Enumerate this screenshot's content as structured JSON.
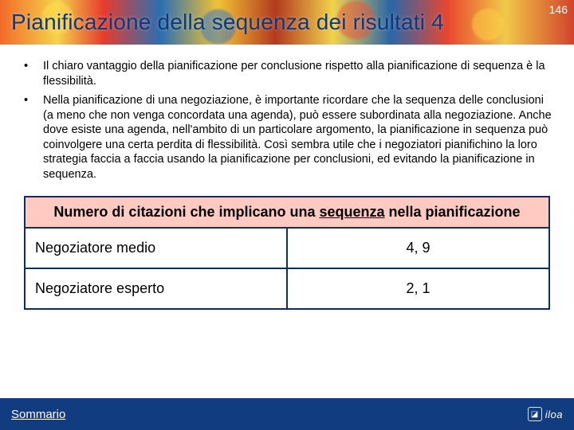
{
  "page_number": "146",
  "title": "Pianificazione della sequenza dei risultati 4",
  "bullets": [
    "Il chiaro vantaggio della pianificazione per conclusione rispetto alla pianificazione di sequenza è la flessibilità.",
    "Nella pianificazione di una negoziazione, è importante ricordare che la sequenza delle conclusioni (a meno che non venga concordata una agenda), può essere subordinata alla negoziazione. Anche dove esiste una agenda, nell'ambito di un particolare argomento, la pianificazione in sequenza può coinvolgere una certa perdita di flessibilità. Così sembra utile che i negoziatori pianifichino la loro strategia faccia a faccia usando la pianificazione per conclusioni, ed evitando la pianificazione in sequenza."
  ],
  "table": {
    "header_pre": "Numero di citazioni che implicano una ",
    "header_underlined": "sequenza",
    "header_post": " nella pianificazione",
    "rows": [
      {
        "label": "Negoziatore medio",
        "value": "4, 9"
      },
      {
        "label": "Negoziatore esperto",
        "value": "2, 1"
      }
    ]
  },
  "footer": {
    "link_label": "Sommario",
    "logo_text": "iloa"
  },
  "colors": {
    "title_color": "#0d3a7a",
    "table_header_bg": "#fecac2",
    "table_border": "#0d2d66",
    "footer_bg": "#113d80"
  }
}
